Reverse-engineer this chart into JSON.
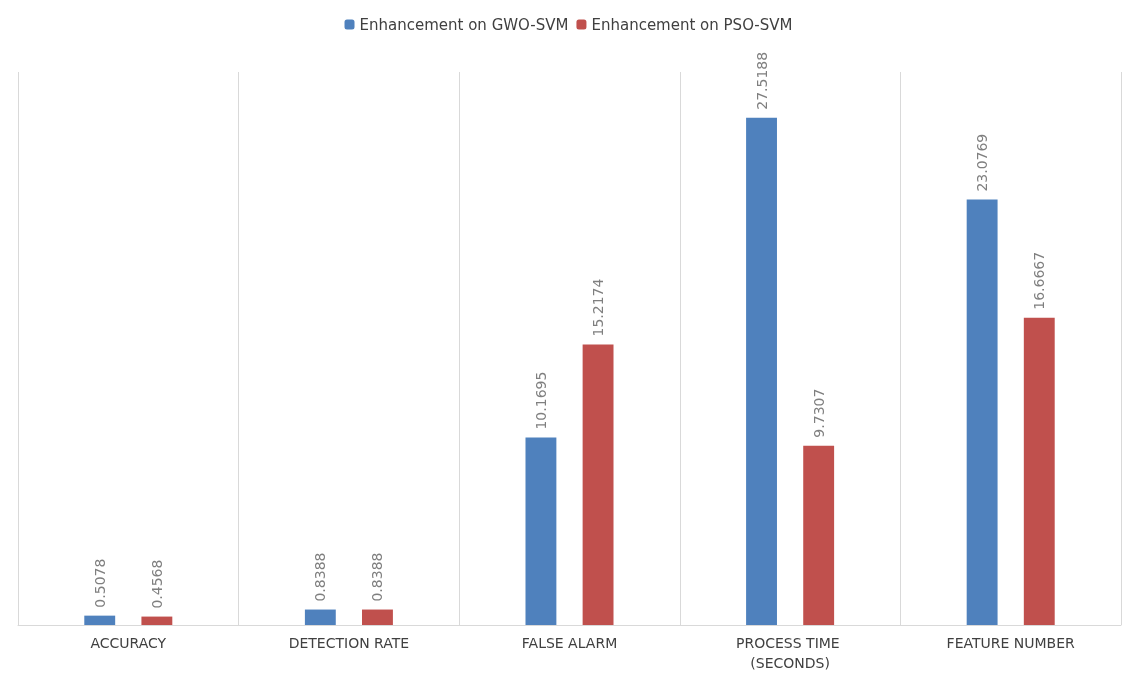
{
  "chart_data": {
    "type": "bar",
    "categories": [
      "ACCURACY",
      "DETECTION RATE",
      "FALSE ALARM",
      "PROCESS TIME (SECONDS)",
      "FEATURE NUMBER"
    ],
    "series": [
      {
        "name": "Enhancement on GWO-SVM",
        "color": "#4f81bd",
        "values": [
          0.5078,
          0.8388,
          10.1695,
          27.5188,
          23.0769
        ]
      },
      {
        "name": "Enhancement on PSO-SVM",
        "color": "#c0504d",
        "values": [
          0.4568,
          0.8388,
          15.2174,
          9.7307,
          16.6667
        ]
      }
    ],
    "data_labels": true,
    "grid": "x",
    "legend": "top"
  }
}
